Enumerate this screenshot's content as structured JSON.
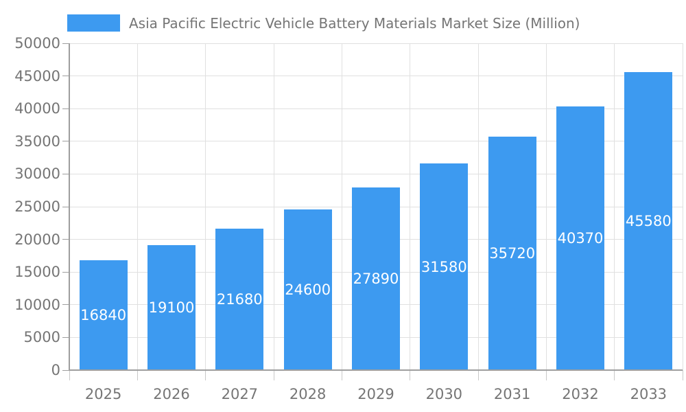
{
  "chart_data": {
    "type": "bar",
    "title": "Asia Pacific Electric Vehicle Battery Materials Market Size (Million)",
    "legend": {
      "position": "top-left",
      "entries": [
        "Asia Pacific Electric Vehicle Battery Materials Market Size (Million)"
      ]
    },
    "categories": [
      "2025",
      "2026",
      "2027",
      "2028",
      "2029",
      "2030",
      "2031",
      "2032",
      "2033"
    ],
    "values": [
      16840,
      19100,
      21680,
      24600,
      27890,
      31580,
      35720,
      40370,
      45580
    ],
    "bar_value_labels": [
      "16840",
      "19100",
      "21680",
      "24600",
      "27890",
      "31580",
      "35720",
      "40370",
      "45580"
    ],
    "xlabel": "",
    "ylabel": "",
    "ylim": [
      0,
      50000
    ],
    "yticks": [
      0,
      5000,
      10000,
      15000,
      20000,
      25000,
      30000,
      35000,
      40000,
      45000,
      50000
    ],
    "ytick_labels": [
      "0",
      "5000",
      "10000",
      "15000",
      "20000",
      "25000",
      "30000",
      "35000",
      "40000",
      "45000",
      "50000"
    ],
    "grid": true,
    "bar_labels_shown": true,
    "colors": {
      "bar": "#3d9af0",
      "bar_label_text": "#ffffff",
      "axis_text": "#757575",
      "axis_line": "#9e9e9e",
      "gridline": "#e0e0e0",
      "background": "#ffffff"
    }
  }
}
